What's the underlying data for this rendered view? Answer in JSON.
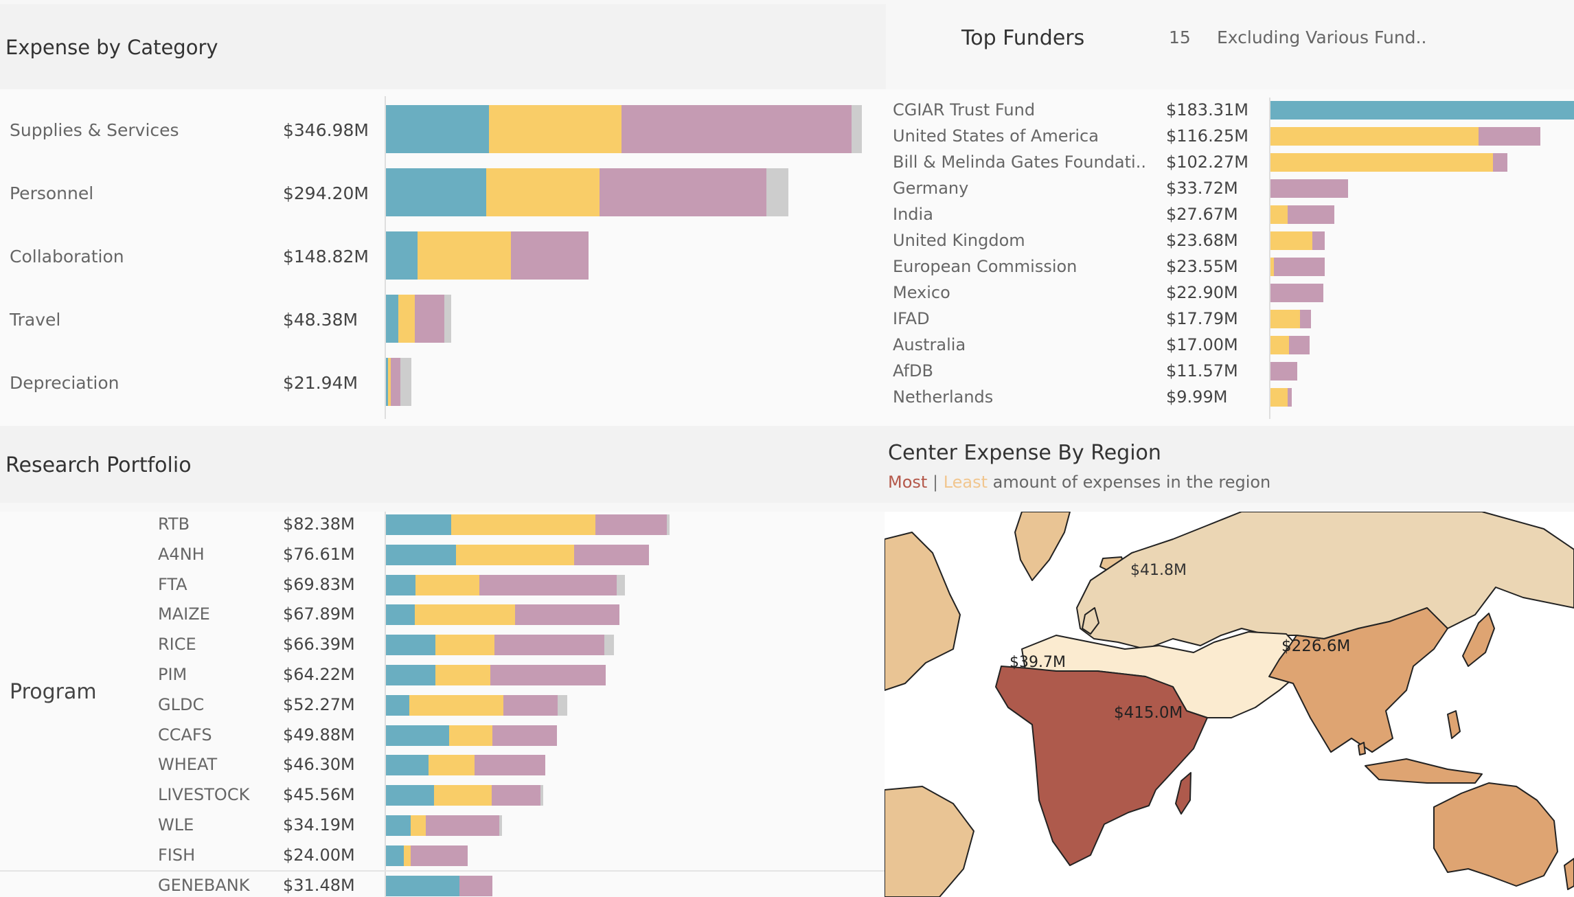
{
  "colors": {
    "teal": "#6aaec1",
    "yellow": "#f9cd68",
    "pink": "#c59bb3",
    "grey": "#cdcdcd",
    "most": "#b4584a",
    "least": "#f8ddb5"
  },
  "expense": {
    "title": "Expense by Category",
    "rows": [
      {
        "label": "Supplies & Services",
        "value": "$346.98M",
        "segments": [
          150,
          193,
          335,
          15
        ]
      },
      {
        "label": "Personnel",
        "value": "$294.20M",
        "segments": [
          146,
          165,
          243,
          32
        ]
      },
      {
        "label": "Collaboration",
        "value": "$148.82M",
        "segments": [
          46,
          136,
          113,
          0
        ]
      },
      {
        "label": "Travel",
        "value": "$48.38M",
        "segments": [
          18,
          24,
          43,
          10
        ]
      },
      {
        "label": "Depreciation",
        "value": "$21.94M",
        "segments": [
          3,
          4,
          14,
          16
        ]
      }
    ]
  },
  "funders": {
    "title": "Top Funders",
    "count": "15",
    "filter": "Excluding Various Fund..",
    "rows": [
      {
        "label": "CGIAR Trust Fund",
        "value": "$183.31M",
        "segments": [
          445,
          0,
          0,
          0
        ]
      },
      {
        "label": "United States of America",
        "value": "$116.25M",
        "segments": [
          0,
          303,
          90,
          0
        ]
      },
      {
        "label": "Bill & Melinda Gates Foundati..",
        "value": "$102.27M",
        "segments": [
          0,
          324,
          21,
          0
        ]
      },
      {
        "label": "Germany",
        "value": "$33.72M",
        "segments": [
          0,
          0,
          113,
          0
        ]
      },
      {
        "label": "India",
        "value": "$27.67M",
        "segments": [
          0,
          25,
          68,
          0
        ]
      },
      {
        "label": "United Kingdom",
        "value": "$23.68M",
        "segments": [
          0,
          61,
          18,
          0
        ]
      },
      {
        "label": "European Commission",
        "value": "$23.55M",
        "segments": [
          0,
          5,
          74,
          0
        ]
      },
      {
        "label": "Mexico",
        "value": "$22.90M",
        "segments": [
          0,
          0,
          77,
          0
        ]
      },
      {
        "label": "IFAD",
        "value": "$17.79M",
        "segments": [
          0,
          43,
          16,
          0
        ]
      },
      {
        "label": "Australia",
        "value": "$17.00M",
        "segments": [
          0,
          27,
          30,
          0
        ]
      },
      {
        "label": "AfDB",
        "value": "$11.57M",
        "segments": [
          0,
          0,
          39,
          0
        ]
      },
      {
        "label": "Netherlands",
        "value": "$9.99M",
        "segments": [
          0,
          25,
          6,
          0
        ]
      }
    ]
  },
  "portfolio": {
    "title": "Research Portfolio",
    "group_label": "Program",
    "rows": [
      {
        "label": "RTB",
        "value": "$82.38M",
        "segments": [
          95,
          210,
          104,
          4
        ]
      },
      {
        "label": "A4NH",
        "value": "$76.61M",
        "segments": [
          102,
          172,
          109,
          0
        ]
      },
      {
        "label": "FTA",
        "value": "$69.83M",
        "segments": [
          43,
          93,
          200,
          12
        ]
      },
      {
        "label": "MAIZE",
        "value": "$67.89M",
        "segments": [
          42,
          146,
          152,
          0
        ]
      },
      {
        "label": "RICE",
        "value": "$66.39M",
        "segments": [
          72,
          86,
          160,
          14
        ]
      },
      {
        "label": "PIM",
        "value": "$64.22M",
        "segments": [
          72,
          80,
          168,
          0
        ]
      },
      {
        "label": "GLDC",
        "value": "$52.27M",
        "segments": [
          34,
          137,
          79,
          14
        ]
      },
      {
        "label": "CCAFS",
        "value": "$49.88M",
        "segments": [
          92,
          63,
          94,
          0
        ]
      },
      {
        "label": "WHEAT",
        "value": "$46.30M",
        "segments": [
          62,
          67,
          103,
          0
        ]
      },
      {
        "label": "LIVESTOCK",
        "value": "$45.56M",
        "segments": [
          70,
          84,
          71,
          4
        ]
      },
      {
        "label": "WLE",
        "value": "$34.19M",
        "segments": [
          36,
          22,
          107,
          4
        ]
      },
      {
        "label": "FISH",
        "value": "$24.00M",
        "segments": [
          26,
          10,
          83,
          0
        ]
      },
      {
        "label": "GENEBANK",
        "value": "$31.48M",
        "segments": [
          107,
          0,
          48,
          0
        ]
      }
    ]
  },
  "map": {
    "title": "Center Expense By Region",
    "legend_most": "Most",
    "legend_sep": "|",
    "legend_least": "Least",
    "legend_rest": "amount of expenses in the region",
    "regions": [
      {
        "name": "Europe & Central Asia",
        "label": "$41.8M"
      },
      {
        "name": "South & East Asia",
        "label": "$226.6M"
      },
      {
        "name": "Middle East & North Africa",
        "label": "$39.7M"
      },
      {
        "name": "Sub-Saharan Africa",
        "label": "$415.0M"
      }
    ]
  }
}
